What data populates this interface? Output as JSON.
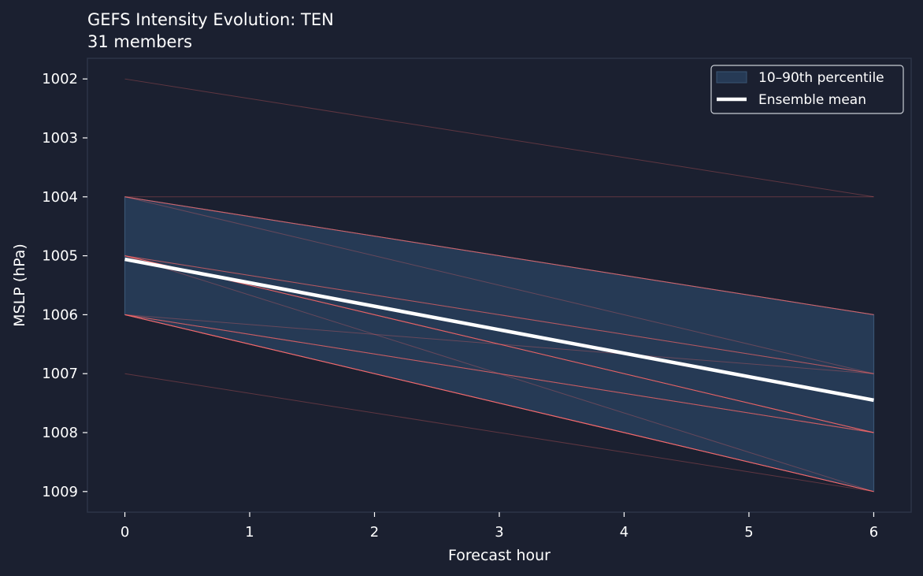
{
  "chart_data": {
    "type": "line",
    "title": "GEFS Intensity Evolution: TEN",
    "subtitle": "31 members",
    "xlabel": "Forecast hour",
    "ylabel": "MSLP (hPa)",
    "x": [
      0,
      6
    ],
    "xlim": [
      -0.3,
      6.3
    ],
    "ylim": [
      1009.35,
      1001.65
    ],
    "y_inverted": true,
    "x_ticks": [
      0,
      1,
      2,
      3,
      4,
      5,
      6
    ],
    "y_ticks": [
      1002,
      1003,
      1004,
      1005,
      1006,
      1007,
      1008,
      1009
    ],
    "grid": false,
    "legend_position": "top-right",
    "member_count": 31,
    "members": [
      {
        "values": [
          1002,
          1004
        ],
        "count": 1
      },
      {
        "values": [
          1004,
          1004
        ],
        "count": 1
      },
      {
        "values": [
          1004,
          1006
        ],
        "count": 4
      },
      {
        "values": [
          1004,
          1007
        ],
        "count": 1
      },
      {
        "values": [
          1005,
          1007
        ],
        "count": 3
      },
      {
        "values": [
          1005,
          1008
        ],
        "count": 6
      },
      {
        "values": [
          1005,
          1009
        ],
        "count": 1
      },
      {
        "values": [
          1006,
          1007
        ],
        "count": 1
      },
      {
        "values": [
          1006,
          1008
        ],
        "count": 4
      },
      {
        "values": [
          1006,
          1009
        ],
        "count": 8
      },
      {
        "values": [
          1007,
          1009
        ],
        "count": 1
      }
    ],
    "percentile_band": {
      "name": "10–90th percentile",
      "lower": [
        1004,
        1006
      ],
      "upper": [
        1006,
        1009
      ]
    },
    "mean": {
      "name": "Ensemble mean",
      "values": [
        1005.06,
        1007.45
      ]
    },
    "colors": {
      "background": "#1b2030",
      "band_fill": "#263a55",
      "band_edge": "#3a5573",
      "member_line": "#ff6b6b",
      "mean_line": "#ffffff",
      "axes_spine": "#2c3447",
      "text": "#ffffff"
    }
  }
}
